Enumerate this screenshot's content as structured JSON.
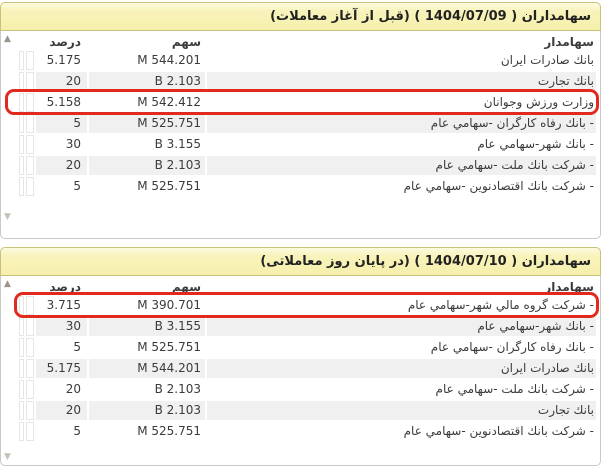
{
  "ui": {
    "scroll_up_glyph": "▲",
    "scroll_down_glyph": "▼"
  },
  "colors": {
    "section_header_bg": "#f6f0ac",
    "section_header_border": "#c9c07c",
    "row_stripe": "#f0f0f0",
    "highlight_annotation": "#e02a1e",
    "text": "#3b3b3b"
  },
  "sections": [
    {
      "title": "سهامداران ( 1404/07/09 ) (قبل از آغاز معاملات)",
      "columns": {
        "shareholder": "سهامدار",
        "shares": "سهم",
        "percent": "درصد"
      },
      "rows": [
        {
          "name": "بانك صادرات ايران",
          "shares": "544.201 M",
          "percent": "5.175",
          "highlighted": false
        },
        {
          "name": "بانك تجارت",
          "shares": "2.103 B",
          "percent": "20",
          "highlighted": false
        },
        {
          "name": "وزارت ورزش وجوانان",
          "shares": "542.412 M",
          "percent": "5.158",
          "highlighted": true
        },
        {
          "name": "- بانك رفاه كارگران -سهامي عام",
          "shares": "525.751 M",
          "percent": "5",
          "highlighted": false
        },
        {
          "name": "- بانك شهر-سهامي عام",
          "shares": "3.155 B",
          "percent": "30",
          "highlighted": false
        },
        {
          "name": "- شركت بانك ملت -سهامي عام",
          "shares": "2.103 B",
          "percent": "20",
          "highlighted": false
        },
        {
          "name": "- شركت بانك اقتصادنوين -سهامي عام",
          "shares": "525.751 M",
          "percent": "5",
          "highlighted": false
        }
      ]
    },
    {
      "title": "سهامداران ( 1404/07/10 ) (در پایان روز معاملاتی)",
      "columns": {
        "shareholder": "سهامدار",
        "shares": "سهم",
        "percent": "درصد"
      },
      "rows": [
        {
          "name": "- شركت گروه مالي شهر-سهامي عام",
          "shares": "390.701 M",
          "percent": "3.715",
          "highlighted": true
        },
        {
          "name": "- بانك شهر-سهامي عام",
          "shares": "3.155 B",
          "percent": "30",
          "highlighted": false
        },
        {
          "name": "- بانك رفاه كارگران -سهامي عام",
          "shares": "525.751 M",
          "percent": "5",
          "highlighted": false
        },
        {
          "name": "بانك صادرات ايران",
          "shares": "544.201 M",
          "percent": "5.175",
          "highlighted": false
        },
        {
          "name": "- شركت بانك ملت -سهامي عام",
          "shares": "2.103 B",
          "percent": "20",
          "highlighted": false
        },
        {
          "name": "بانك تجارت",
          "shares": "2.103 B",
          "percent": "20",
          "highlighted": false
        },
        {
          "name": "- شركت بانك اقتصادنوين -سهامي عام",
          "shares": "525.751 M",
          "percent": "5",
          "highlighted": false
        }
      ]
    }
  ]
}
